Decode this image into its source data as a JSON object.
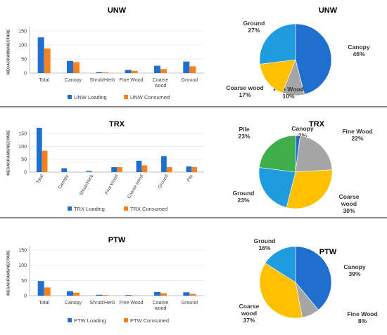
{
  "colors": {
    "loading": "#1f6fd1",
    "consumed": "#f5821f",
    "canopy": "#1f6fd1",
    "fine_wood": "#a6a6a6",
    "coarse_wood": "#ffc000",
    "ground": "#1f9be0",
    "pile": "#3fae49",
    "shrub_herb": "#1f6fd1",
    "axis": "#bfbfbf",
    "grid": "#d9d9d9",
    "text": "#404040"
  },
  "chart_data": [
    {
      "type": "bar",
      "title": "UNW",
      "ylabel": "MEGAGRAMS/HECTARE",
      "xlabel": "",
      "ylim": [
        0,
        150
      ],
      "yticks": [
        0,
        50,
        100,
        150
      ],
      "tick_rotation": 0,
      "categories": [
        "Total",
        "Canopy",
        "Shrub/Herb",
        "Fine Wood",
        "Coarse wood",
        "Ground"
      ],
      "series": [
        {
          "name": "UNW Loading",
          "values": [
            127,
            43,
            3,
            11,
            26,
            41
          ]
        },
        {
          "name": "UNW Consumed",
          "values": [
            87,
            39,
            2,
            8,
            14,
            24
          ]
        }
      ],
      "legend": "bottom"
    },
    {
      "type": "pie",
      "title": "UNW",
      "slices": [
        {
          "label": "Canopy",
          "value": 46,
          "pct": "46%"
        },
        {
          "label": "Fine Wood",
          "value": 10,
          "pct": "10%"
        },
        {
          "label": "Coarse wood",
          "value": 17,
          "pct": "17%"
        },
        {
          "label": "Ground",
          "value": 27,
          "pct": "27%"
        }
      ]
    },
    {
      "type": "bar",
      "title": "TRX",
      "ylabel": "MEGAGRAMS/HECTARE",
      "xlabel": "",
      "ylim": [
        0,
        150
      ],
      "yticks": [
        0,
        50,
        100,
        150
      ],
      "tick_rotation": -60,
      "categories": [
        "Total",
        "Canopy",
        "Shrub/Herb",
        "Fine Wood",
        "Coarse wood",
        "Ground",
        "Pile"
      ],
      "series": [
        {
          "name": "TRX Loading",
          "values": [
            172,
            15,
            4,
            19,
            44,
            62,
            22
          ]
        },
        {
          "name": "TRX Consumed",
          "values": [
            83,
            0,
            0,
            19,
            26,
            19,
            19
          ]
        }
      ],
      "legend": "bottom"
    },
    {
      "type": "pie",
      "title": "TRX",
      "slices": [
        {
          "label": "Canopy",
          "value": 2,
          "pct": "2%"
        },
        {
          "label": "Fine Wood",
          "value": 22,
          "pct": "22%"
        },
        {
          "label": "Coarse wood",
          "value": 30,
          "pct": "30%"
        },
        {
          "label": "Ground",
          "value": 23,
          "pct": "23%"
        },
        {
          "label": "Pile",
          "value": 23,
          "pct": "23%"
        }
      ]
    },
    {
      "type": "bar",
      "title": "PTW",
      "ylabel": "MEGAGRAMS/HECTARE",
      "xlabel": "",
      "ylim": [
        0,
        150
      ],
      "yticks": [
        0,
        50,
        100,
        150
      ],
      "tick_rotation": 0,
      "categories": [
        "Total",
        "Canopy",
        "Shrub/Herb",
        "Fine Wood",
        "Coarse wood",
        "Ground"
      ],
      "series": [
        {
          "name": "PTW Loading",
          "values": [
            48,
            15,
            3,
            2,
            12,
            11
          ]
        },
        {
          "name": "PTW Consumed",
          "values": [
            27,
            10,
            2,
            1,
            8,
            6
          ]
        }
      ],
      "legend": "bottom"
    },
    {
      "type": "pie",
      "title": "PTW",
      "slices": [
        {
          "label": "Canopy",
          "value": 39,
          "pct": "39%"
        },
        {
          "label": "Fine Wood",
          "value": 8,
          "pct": "8%"
        },
        {
          "label": "Coarse wood",
          "value": 37,
          "pct": "37%"
        },
        {
          "label": "Ground",
          "value": 16,
          "pct": "16%"
        }
      ]
    }
  ]
}
